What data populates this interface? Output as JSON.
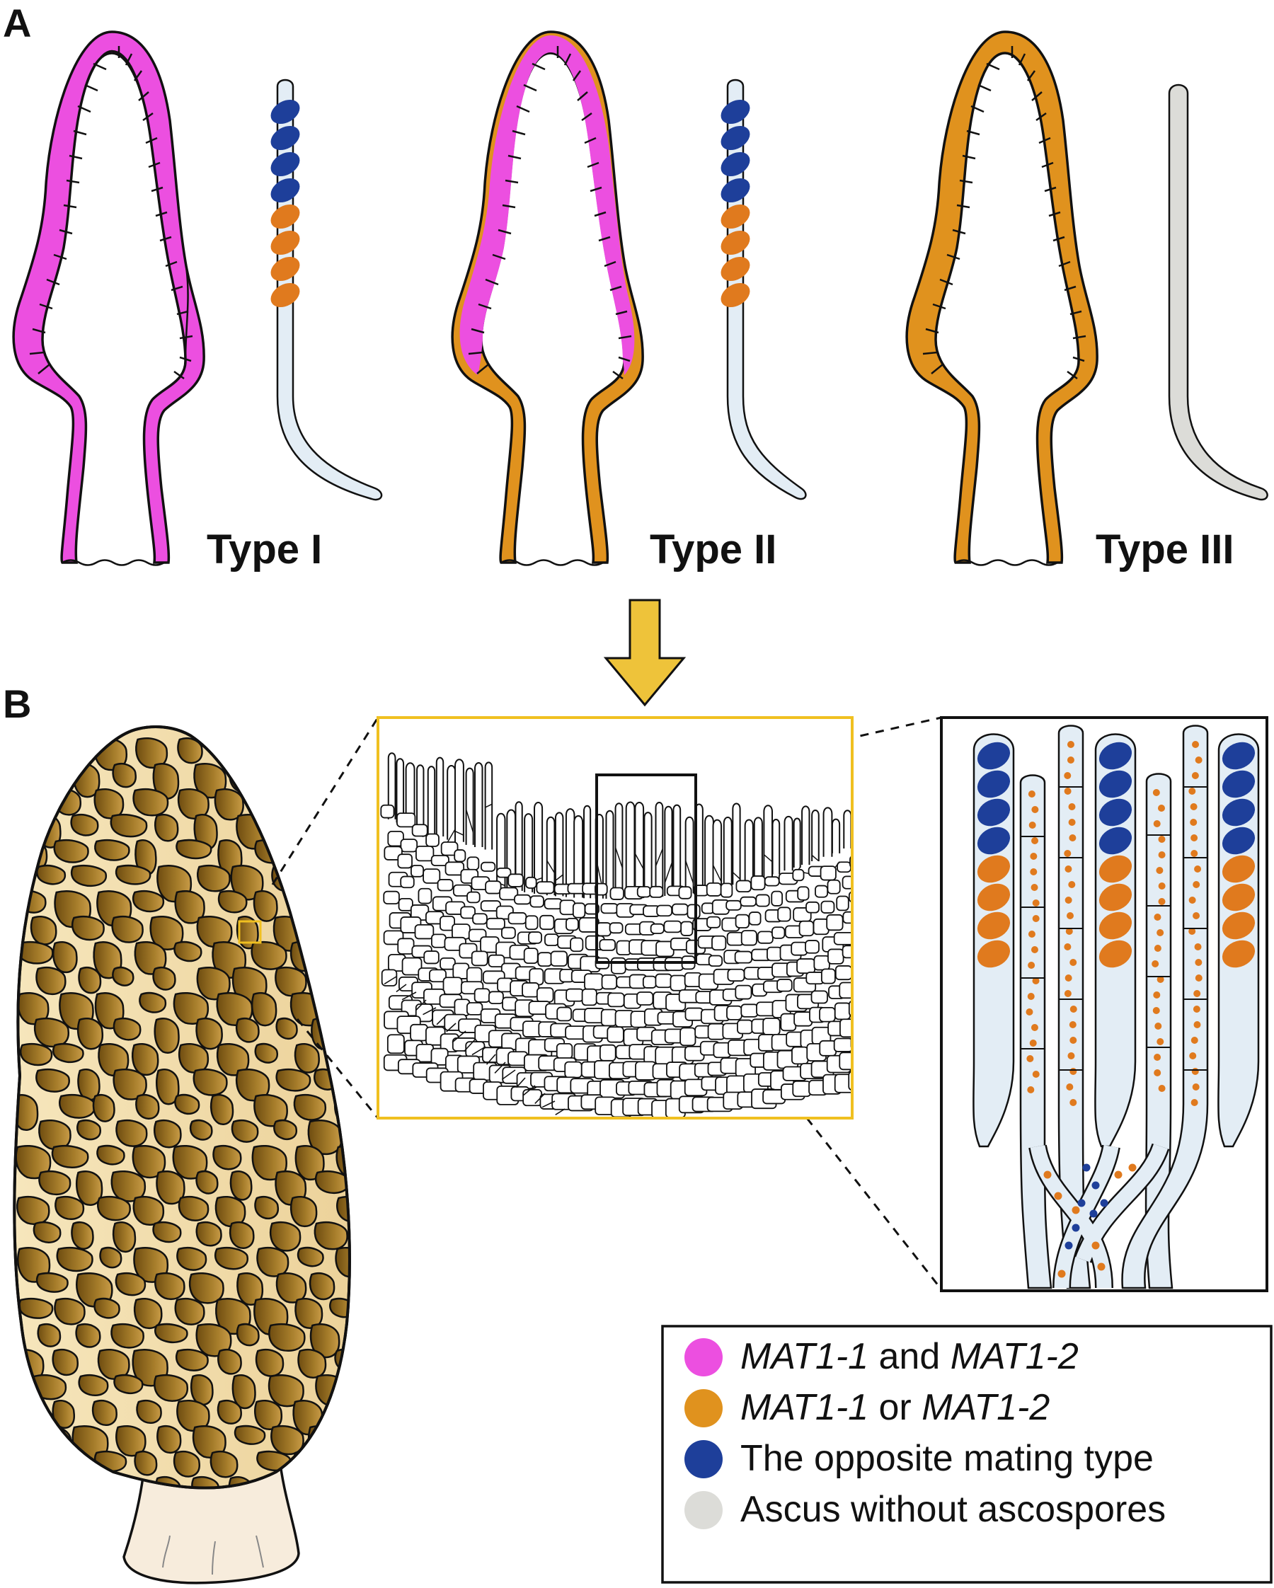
{
  "panels": {
    "a_label": "A",
    "b_label": "B"
  },
  "types": [
    {
      "label": "Type I",
      "tissue": "magenta",
      "hymenium": "magenta",
      "ascus": "spored"
    },
    {
      "label": "Type II",
      "tissue": "orange",
      "hymenium": "magenta",
      "ascus": "spored"
    },
    {
      "label": "Type III",
      "tissue": "orange",
      "hymenium": "orange",
      "ascus": "empty"
    }
  ],
  "legend": {
    "items": [
      {
        "swatch": "#ec4fe0",
        "parts": [
          {
            "text": "MAT1-1",
            "italic": true
          },
          {
            "text": " and ",
            "italic": false
          },
          {
            "text": "MAT1-2",
            "italic": true
          }
        ]
      },
      {
        "swatch": "#e0921e",
        "parts": [
          {
            "text": "MAT1-1",
            "italic": true
          },
          {
            "text": " or ",
            "italic": false
          },
          {
            "text": "MAT1-2",
            "italic": true
          }
        ]
      },
      {
        "swatch": "#1e3f9a",
        "parts": [
          {
            "text": "The opposite mating type",
            "italic": false
          }
        ]
      },
      {
        "swatch": "#dcdcd8",
        "parts": [
          {
            "text": "Ascus without ascospores",
            "italic": false
          }
        ]
      }
    ]
  },
  "colors": {
    "magenta": "#ec4fe0",
    "orange": "#e0921e",
    "blue": "#1e3f9a",
    "spore_orange": "#e07a1e",
    "ascus_fill": "#e3edf5",
    "empty_ascus": "#dcdcd8",
    "arrow": "#eec33a",
    "zoom_frame": "#f0c020",
    "cap_light": "#f2dca6",
    "cap_dark": "#8a6418",
    "stem": "#f7ecdc"
  }
}
